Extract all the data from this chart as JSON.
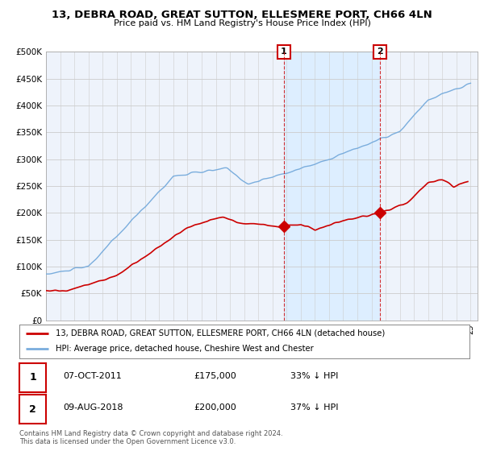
{
  "title": "13, DEBRA ROAD, GREAT SUTTON, ELLESMERE PORT, CH66 4LN",
  "subtitle": "Price paid vs. HM Land Registry's House Price Index (HPI)",
  "ylim": [
    0,
    500000
  ],
  "yticks": [
    0,
    50000,
    100000,
    150000,
    200000,
    250000,
    300000,
    350000,
    400000,
    450000,
    500000
  ],
  "xlim_start": 1995.0,
  "xlim_end": 2025.5,
  "hpi_color": "#7aaddd",
  "price_color": "#cc0000",
  "shade_color": "#ddeeff",
  "marker1_date": 2011.8,
  "marker1_price": 175000,
  "marker2_date": 2018.6,
  "marker2_price": 200000,
  "legend_label_red": "13, DEBRA ROAD, GREAT SUTTON, ELLESMERE PORT, CH66 4LN (detached house)",
  "legend_label_blue": "HPI: Average price, detached house, Cheshire West and Chester",
  "transaction1_date": "07-OCT-2011",
  "transaction1_price": "£175,000",
  "transaction1_hpi": "33% ↓ HPI",
  "transaction2_date": "09-AUG-2018",
  "transaction2_price": "£200,000",
  "transaction2_hpi": "37% ↓ HPI",
  "footer": "Contains HM Land Registry data © Crown copyright and database right 2024.\nThis data is licensed under the Open Government Licence v3.0.",
  "background_color": "#ffffff",
  "plot_bg_color": "#eef3fb"
}
